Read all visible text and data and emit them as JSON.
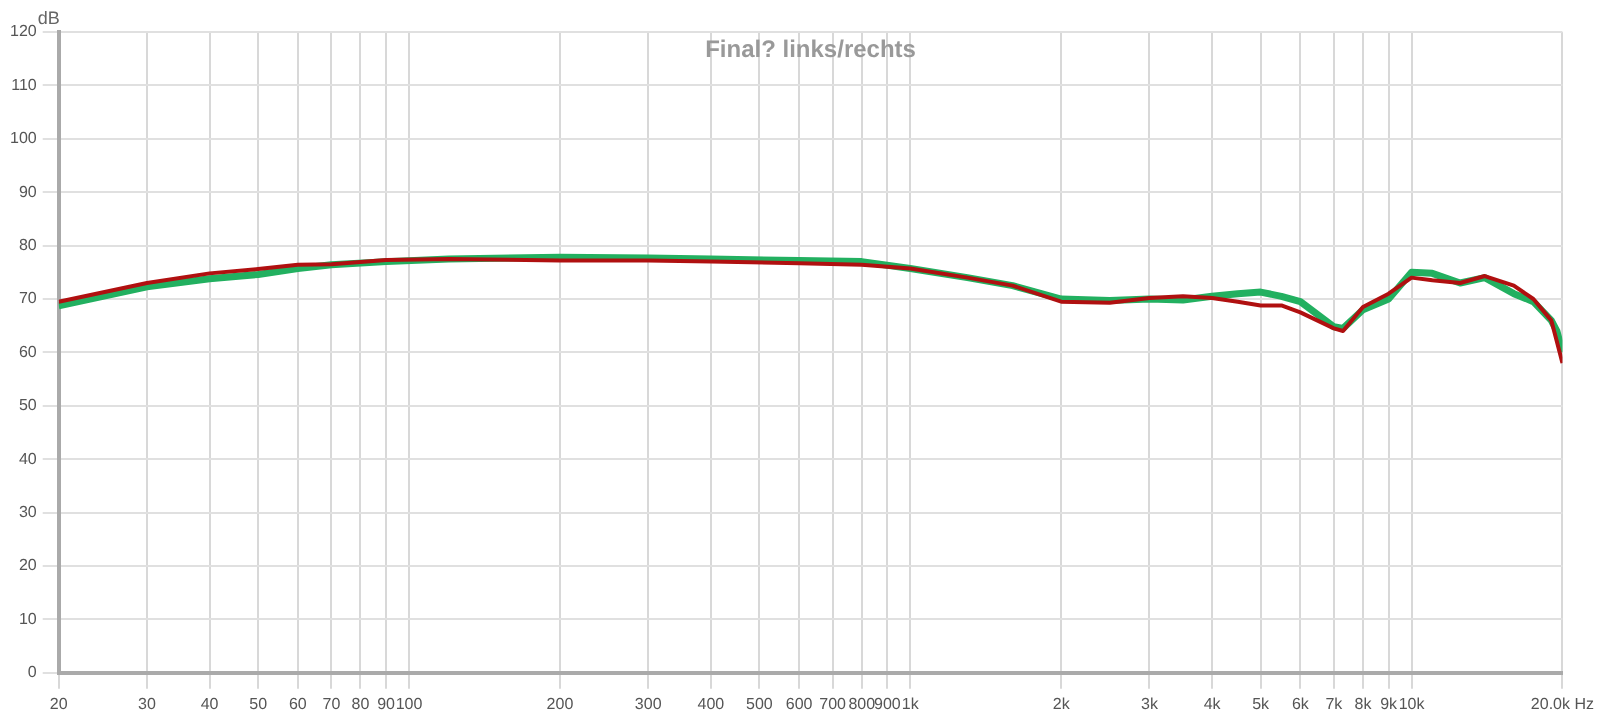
{
  "chart_data": {
    "type": "line",
    "title": "Final? links/rechts",
    "ylabel": "dB",
    "log": "x",
    "grid": true,
    "marker": "none",
    "line_style": "solid",
    "x": [
      20,
      30,
      40,
      50,
      60,
      70,
      90,
      120,
      200,
      300,
      400,
      600,
      800,
      1000,
      1300,
      1600,
      2000,
      2500,
      3000,
      3500,
      4000,
      4500,
      5000,
      5500,
      6000,
      7000,
      7300,
      8000,
      9000,
      10000,
      11000,
      12500,
      14000,
      16000,
      17500,
      19000,
      19500,
      20000
    ],
    "series": [
      {
        "color": "#22b060",
        "values": [
          68.7,
          72.3,
          73.8,
          74.6,
          75.7,
          76.4,
          77.0,
          77.5,
          77.8,
          77.7,
          77.5,
          77.2,
          77.0,
          75.7,
          74.0,
          72.5,
          70.0,
          69.7,
          70.0,
          69.8,
          70.5,
          71.0,
          71.3,
          70.5,
          69.5,
          64.8,
          64.5,
          68.0,
          70.0,
          75.0,
          74.8,
          73.0,
          74.0,
          71.0,
          69.5,
          66.0,
          64.0,
          60.0
        ]
      },
      {
        "color": "#b01010",
        "values": [
          69.5,
          73.0,
          74.8,
          75.6,
          76.4,
          76.5,
          77.3,
          77.5,
          77.2,
          77.2,
          77.0,
          76.7,
          76.4,
          75.7,
          74.0,
          72.5,
          69.5,
          69.3,
          70.2,
          70.5,
          70.2,
          69.5,
          68.8,
          68.8,
          67.5,
          64.5,
          64.0,
          68.5,
          71.0,
          74.0,
          73.5,
          73.0,
          74.3,
          72.5,
          70.0,
          66.0,
          62.0,
          58.0
        ]
      }
    ],
    "xlim": [
      20,
      20000
    ],
    "xticks": [
      20,
      30,
      40,
      50,
      60,
      70,
      80,
      90,
      100,
      200,
      300,
      400,
      500,
      600,
      700,
      800,
      900,
      {
        "value": 1000,
        "label": "1k"
      },
      {
        "value": 2000,
        "label": "2k"
      },
      {
        "value": 3000,
        "label": "3k"
      },
      {
        "value": 4000,
        "label": "4k"
      },
      {
        "value": 5000,
        "label": "5k"
      },
      {
        "value": 6000,
        "label": "6k"
      },
      {
        "value": 7000,
        "label": "7k"
      },
      {
        "value": 8000,
        "label": "8k"
      },
      {
        "value": 9000,
        "label": "9k"
      },
      {
        "value": 10000,
        "label": "10k"
      },
      {
        "value": 20000,
        "label": "20.0k Hz"
      }
    ],
    "ylim": [
      0,
      120
    ],
    "yticks": [
      0,
      10,
      20,
      30,
      40,
      50,
      60,
      70,
      80,
      90,
      100,
      110,
      120
    ]
  }
}
